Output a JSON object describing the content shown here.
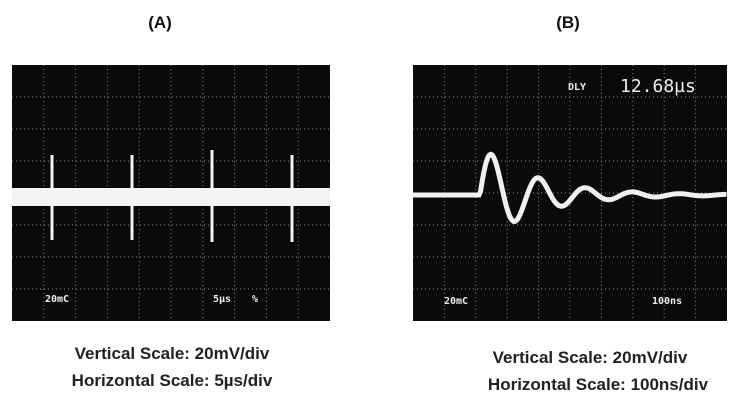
{
  "panels": [
    {
      "label": "(A)",
      "screen_texts": [
        "20mC",
        "5µs",
        "%"
      ],
      "captions": [
        "Vertical Scale: 20mV/div",
        "Horizontal Scale: 5µs/div"
      ]
    },
    {
      "label": "(B)",
      "screen_texts": [
        "DLY",
        "12.68µs",
        "20mC",
        "100ns"
      ],
      "captions": [
        "Vertical Scale: 20mV/div",
        "Horizontal Scale: 100ns/div"
      ]
    }
  ]
}
